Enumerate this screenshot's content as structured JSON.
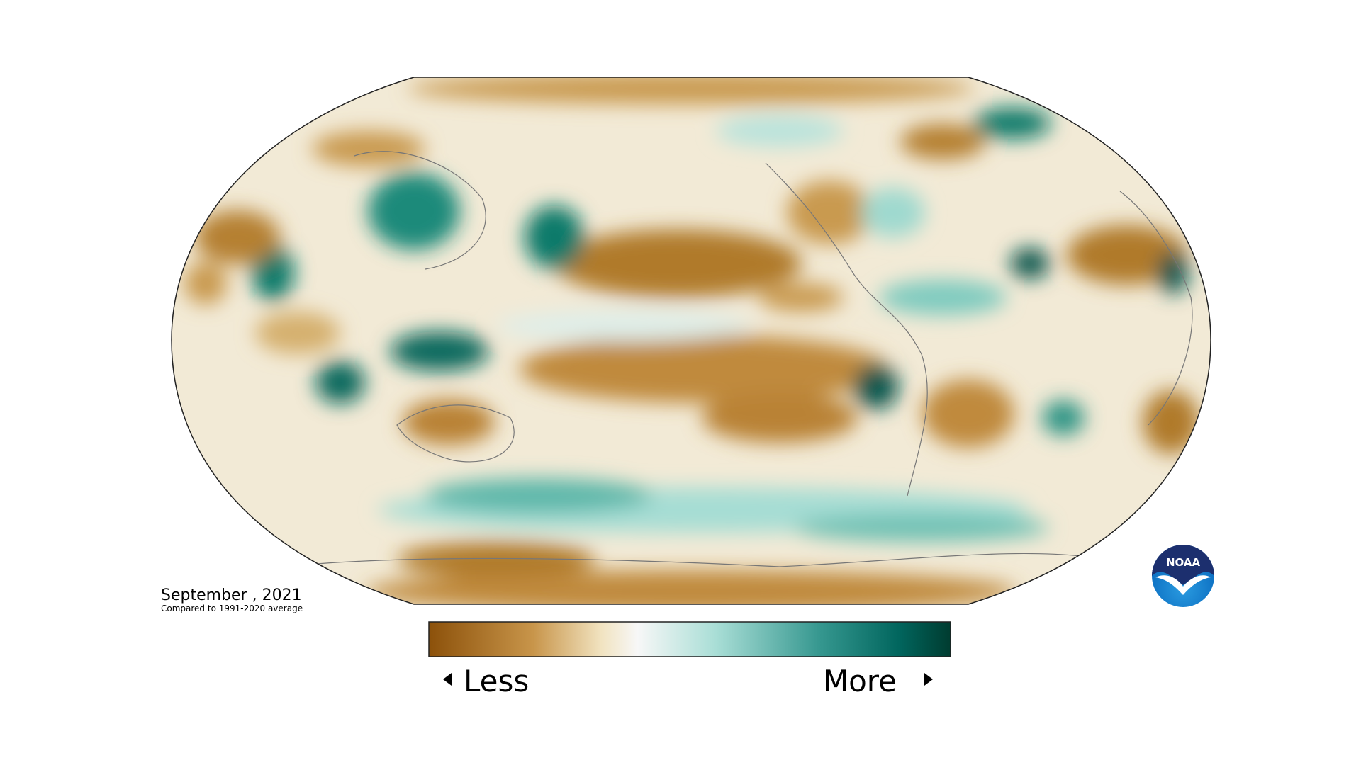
{
  "map": {
    "date": "September , 2021",
    "subtitle": "Compared to 1991-2020 average"
  },
  "legend": {
    "less": "Less",
    "more": "More"
  },
  "logo": {
    "text": "NOAA"
  }
}
